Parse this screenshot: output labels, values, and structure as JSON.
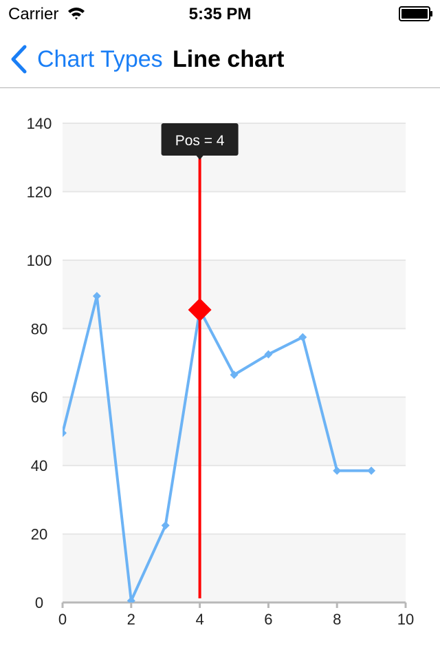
{
  "status_bar": {
    "carrier": "Carrier",
    "time": "5:35 PM",
    "wifi_icon": "wifi-icon",
    "battery_icon": "battery-full-icon"
  },
  "nav": {
    "back_label": "Chart Types",
    "back_icon": "chevron-left-icon",
    "title": "Line chart",
    "accent_color": "#1a7ef5"
  },
  "chart_data": {
    "type": "line",
    "x": [
      0,
      1,
      2,
      3,
      4,
      5,
      6,
      7,
      8,
      9
    ],
    "values": [
      49.5,
      89.5,
      0.5,
      22.5,
      85.5,
      66.5,
      72.5,
      77.5,
      38.5,
      38.5
    ],
    "series_color": "#6cb3f5",
    "xlim": [
      0,
      10
    ],
    "ylim": [
      0,
      140
    ],
    "x_ticks": [
      0,
      2,
      4,
      6,
      8,
      10
    ],
    "y_ticks": [
      0,
      20,
      40,
      60,
      80,
      100,
      120,
      140
    ],
    "x_tick_labels": [
      "0",
      "2",
      "4",
      "6",
      "8",
      "10"
    ],
    "y_tick_labels": [
      "0",
      "20",
      "40",
      "60",
      "80",
      "100",
      "120",
      "140"
    ],
    "grid": true,
    "alternating_bands": true,
    "crosshair": {
      "x": 4,
      "tooltip": "Pos = 4",
      "line_color": "#ff0000",
      "marker_color": "#ff0000"
    }
  }
}
